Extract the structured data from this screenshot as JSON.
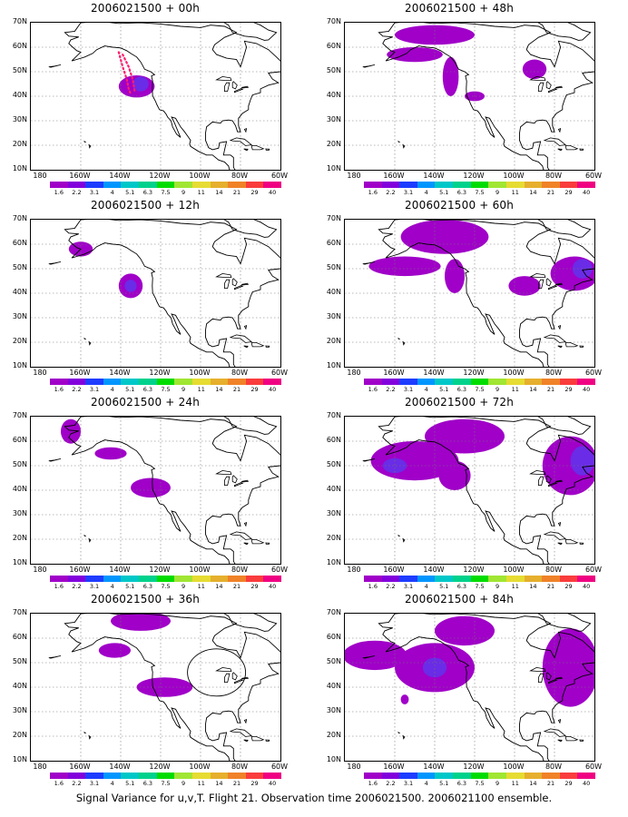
{
  "panels": [
    {
      "title": "2006021500 + 00h"
    },
    {
      "title": "2006021500 + 48h"
    },
    {
      "title": "2006021500 + 12h"
    },
    {
      "title": "2006021500 + 60h"
    },
    {
      "title": "2006021500 + 24h"
    },
    {
      "title": "2006021500 + 72h"
    },
    {
      "title": "2006021500 + 36h"
    },
    {
      "title": "2006021500 + 84h"
    }
  ],
  "axes": {
    "lat_labels": [
      "70N",
      "60N",
      "50N",
      "40N",
      "30N",
      "20N",
      "10N"
    ],
    "lon_labels": [
      "180",
      "160W",
      "140W",
      "120W",
      "100W",
      "80W",
      "60W"
    ],
    "lat_range": [
      10,
      70
    ],
    "lon_range": [
      -185,
      -60
    ]
  },
  "colorbar": {
    "labels": [
      "1.6",
      "2.2",
      "3.1",
      "4",
      "5.1",
      "6.3",
      "7.5",
      "9",
      "11",
      "14",
      "21",
      "29",
      "40"
    ],
    "colors": [
      "#a000c8",
      "#8200dc",
      "#1e3cff",
      "#0096ff",
      "#00c8c8",
      "#00d28c",
      "#00dc00",
      "#a0e632",
      "#e6dc32",
      "#e6af2d",
      "#f08228",
      "#fa3c3c",
      "#f00082"
    ]
  },
  "footer": "Signal Variance for u,v,T. Flight 21. Observation time 2006021500. 2006021100 ensemble.",
  "variance_blobs": {
    "p0": [
      {
        "lon": -132,
        "lat": 44,
        "rx": 9,
        "ry": 4.5,
        "level": 1
      },
      {
        "lon": -130,
        "lat": 45,
        "rx": 4,
        "ry": 3,
        "level": 2
      }
    ],
    "p1": [
      {
        "lon": -140,
        "lat": 65,
        "rx": 20,
        "ry": 4,
        "level": 1
      },
      {
        "lon": -150,
        "lat": 57,
        "rx": 14,
        "ry": 3,
        "level": 1
      },
      {
        "lon": -132,
        "lat": 48,
        "rx": 4,
        "ry": 8,
        "level": 1
      },
      {
        "lon": -120,
        "lat": 40,
        "rx": 5,
        "ry": 2,
        "level": 1
      },
      {
        "lon": -90,
        "lat": 51,
        "rx": 6,
        "ry": 4,
        "level": 1
      }
    ],
    "p2": [
      {
        "lon": -160,
        "lat": 58,
        "rx": 6,
        "ry": 3,
        "level": 1
      },
      {
        "lon": -135,
        "lat": 43,
        "rx": 6,
        "ry": 5,
        "level": 1
      },
      {
        "lon": -135,
        "lat": 43,
        "rx": 3,
        "ry": 2.5,
        "level": 2
      }
    ],
    "p3": [
      {
        "lon": -135,
        "lat": 63,
        "rx": 22,
        "ry": 7,
        "level": 1
      },
      {
        "lon": -155,
        "lat": 51,
        "rx": 18,
        "ry": 4,
        "level": 1
      },
      {
        "lon": -130,
        "lat": 47,
        "rx": 5,
        "ry": 7,
        "level": 1
      },
      {
        "lon": -95,
        "lat": 43,
        "rx": 8,
        "ry": 4,
        "level": 1
      },
      {
        "lon": -70,
        "lat": 48,
        "rx": 12,
        "ry": 7,
        "level": 1
      },
      {
        "lon": -66,
        "lat": 50,
        "rx": 5,
        "ry": 4,
        "level": 2
      }
    ],
    "p4": [
      {
        "lon": -165,
        "lat": 64,
        "rx": 5,
        "ry": 5,
        "level": 1
      },
      {
        "lon": -145,
        "lat": 55,
        "rx": 8,
        "ry": 2.5,
        "level": 1
      },
      {
        "lon": -125,
        "lat": 41,
        "rx": 10,
        "ry": 4,
        "level": 1
      }
    ],
    "p5": [
      {
        "lon": -150,
        "lat": 52,
        "rx": 22,
        "ry": 8,
        "level": 1
      },
      {
        "lon": -125,
        "lat": 62,
        "rx": 20,
        "ry": 7,
        "level": 1
      },
      {
        "lon": -130,
        "lat": 46,
        "rx": 8,
        "ry": 6,
        "level": 1
      },
      {
        "lon": -72,
        "lat": 50,
        "rx": 14,
        "ry": 12,
        "level": 1
      },
      {
        "lon": -66,
        "lat": 52,
        "rx": 6,
        "ry": 6,
        "level": 2
      },
      {
        "lon": -160,
        "lat": 50,
        "rx": 6,
        "ry": 3,
        "level": 2
      }
    ],
    "p6": [
      {
        "lon": -130,
        "lat": 67,
        "rx": 15,
        "ry": 4,
        "level": 1
      },
      {
        "lon": -143,
        "lat": 55,
        "rx": 8,
        "ry": 3,
        "level": 1
      },
      {
        "lon": -118,
        "lat": 40,
        "rx": 14,
        "ry": 4,
        "level": 1
      }
    ],
    "p7": [
      {
        "lon": -170,
        "lat": 53,
        "rx": 16,
        "ry": 6,
        "level": 1
      },
      {
        "lon": -140,
        "lat": 48,
        "rx": 20,
        "ry": 10,
        "level": 1
      },
      {
        "lon": -125,
        "lat": 63,
        "rx": 15,
        "ry": 6,
        "level": 1
      },
      {
        "lon": -72,
        "lat": 48,
        "rx": 14,
        "ry": 16,
        "level": 1
      },
      {
        "lon": -140,
        "lat": 48,
        "rx": 6,
        "ry": 4,
        "level": 2
      },
      {
        "lon": -155,
        "lat": 35,
        "rx": 2,
        "ry": 2,
        "level": 1
      }
    ]
  }
}
